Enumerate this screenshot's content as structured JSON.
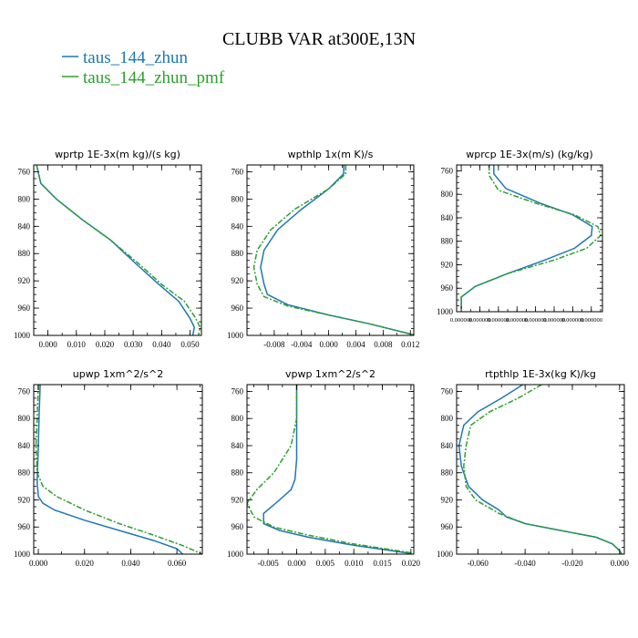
{
  "figure": {
    "title": "CLUBB VAR at300E,13N",
    "legend": [
      {
        "label": "taus_144_zhun",
        "color": "#1f77b4"
      },
      {
        "label": "taus_144_zhun_pmf",
        "color": "#2ca02c"
      }
    ]
  },
  "chart_data": [
    {
      "type": "line",
      "title": "wprtp  1E-3x(m kg)/(s kg)",
      "xlim": [
        -0.005,
        0.054
      ],
      "ylim": [
        1000,
        750
      ],
      "xticks": [
        0.0,
        0.01,
        0.02,
        0.03,
        0.04,
        0.05
      ],
      "xtick_labels": [
        "0.000",
        "0.010",
        "0.020",
        "0.030",
        "0.040",
        "0.050"
      ],
      "yticks": [
        760,
        800,
        840,
        880,
        920,
        960,
        1000
      ],
      "ytick_labels": [
        "760",
        "800",
        "840",
        "880",
        "920",
        "960",
        "1000"
      ],
      "series": [
        {
          "name": "taus_144_zhun",
          "color": "#1f77b4",
          "x": [
            -0.004,
            -0.0025,
            0.003,
            0.012,
            0.022,
            0.031,
            0.039,
            0.046,
            0.05,
            0.0515,
            0.051
          ],
          "y": [
            750,
            777,
            800,
            830,
            860,
            895,
            925,
            950,
            975,
            988,
            1000
          ]
        },
        {
          "name": "taus_144_zhun_pmf",
          "color": "#2ca02c",
          "x": [
            -0.004,
            -0.0025,
            0.003,
            0.012,
            0.022,
            0.032,
            0.04,
            0.048,
            0.052,
            0.0535,
            0.053
          ],
          "y": [
            750,
            777,
            800,
            830,
            860,
            895,
            925,
            950,
            975,
            988,
            1000
          ]
        }
      ]
    },
    {
      "type": "line",
      "title": "wpthlp  1x(m K)/s",
      "xlim": [
        -0.012,
        0.0125
      ],
      "ylim": [
        1000,
        750
      ],
      "xticks": [
        -0.008,
        -0.004,
        0.0,
        0.004,
        0.008,
        0.012
      ],
      "xtick_labels": [
        "-0.008",
        "-0.004",
        "0.000",
        "0.004",
        "0.008",
        "0.012"
      ],
      "yticks": [
        760,
        800,
        840,
        880,
        920,
        960,
        1000
      ],
      "ytick_labels": [
        "760",
        "800",
        "840",
        "880",
        "920",
        "960",
        "1000"
      ],
      "series": [
        {
          "name": "taus_144_zhun",
          "color": "#1f77b4",
          "x": [
            0.0022,
            0.0022,
            0.0,
            -0.004,
            -0.0075,
            -0.0095,
            -0.01,
            -0.0095,
            -0.009,
            -0.006,
            0.0,
            0.006,
            0.012
          ],
          "y": [
            750,
            763,
            785,
            815,
            845,
            875,
            900,
            925,
            940,
            955,
            970,
            983,
            998
          ]
        },
        {
          "name": "taus_144_zhun_pmf",
          "color": "#2ca02c",
          "x": [
            0.0025,
            0.0025,
            0.0,
            -0.005,
            -0.0085,
            -0.0105,
            -0.011,
            -0.0105,
            -0.0095,
            -0.006,
            0.0,
            0.006,
            0.0125
          ],
          "y": [
            750,
            763,
            785,
            815,
            845,
            875,
            900,
            925,
            943,
            957,
            970,
            983,
            999
          ]
        }
      ]
    },
    {
      "type": "line",
      "title": "wprcp  1E-3x(m/s) (kg/kg)",
      "xlim": [
        -0.0005,
        0.0152
      ],
      "ylim": [
        1000,
        750
      ],
      "xticks": [
        0.0,
        0.002,
        0.004,
        0.006,
        0.008,
        0.01,
        0.012,
        0.014
      ],
      "xtick_labels": [
        "0.000000",
        "0.000000",
        "0.000000",
        "0.000000",
        "0.000000",
        "0.000000",
        "0.000000",
        "0.000000"
      ],
      "yticks": [
        760,
        800,
        840,
        880,
        920,
        960
      ],
      "ytick_labels": [
        "760",
        "800",
        "840",
        "880",
        "920",
        "960"
      ],
      "bottom_label": "1000",
      "series": [
        {
          "name": "taus_144_zhun",
          "color": "#1f77b4",
          "x": [
            0.0035,
            0.0035,
            0.0048,
            0.0085,
            0.012,
            0.0141,
            0.014,
            0.0122,
            0.009,
            0.005,
            0.0015,
            0.0,
            0.0
          ],
          "y": [
            750,
            765,
            790,
            815,
            835,
            855,
            870,
            892,
            912,
            935,
            957,
            975,
            995
          ]
        },
        {
          "name": "taus_144_zhun_pmf",
          "color": "#2ca02c",
          "x": [
            0.003,
            0.003,
            0.004,
            0.008,
            0.0122,
            0.0147,
            0.015,
            0.0135,
            0.01,
            0.005,
            0.0015,
            0.0,
            0.0
          ],
          "y": [
            750,
            768,
            793,
            815,
            835,
            855,
            870,
            892,
            912,
            935,
            957,
            975,
            995
          ]
        }
      ]
    },
    {
      "type": "line",
      "title": "upwp  1xm^2/s^2",
      "xlim": [
        -0.002,
        0.071
      ],
      "ylim": [
        1000,
        750
      ],
      "xticks": [
        0.0,
        0.02,
        0.04,
        0.06
      ],
      "xtick_labels": [
        "0.000",
        "0.020",
        "0.040",
        "0.060"
      ],
      "yticks": [
        760,
        800,
        840,
        880,
        920,
        960,
        1000
      ],
      "ytick_labels": [
        "760",
        "800",
        "840",
        "880",
        "920",
        "960",
        "1000"
      ],
      "series": [
        {
          "name": "taus_144_zhun",
          "color": "#1f77b4",
          "x": [
            0.0008,
            0.0003,
            0.0,
            -0.0003,
            -0.0005,
            0.0,
            0.002,
            0.007,
            0.02,
            0.035,
            0.05,
            0.06,
            0.0625
          ],
          "y": [
            750,
            800,
            840,
            870,
            895,
            915,
            925,
            935,
            950,
            965,
            980,
            992,
            1000
          ]
        },
        {
          "name": "taus_144_zhun_pmf",
          "color": "#2ca02c",
          "x": [
            0.0,
            -0.0005,
            -0.001,
            -0.0005,
            0.002,
            0.008,
            0.02,
            0.035,
            0.05,
            0.063,
            0.071
          ],
          "y": [
            750,
            800,
            840,
            880,
            900,
            915,
            935,
            955,
            972,
            988,
            1000
          ]
        }
      ]
    },
    {
      "type": "line",
      "title": "vpwp  1xm^2/s^2",
      "xlim": [
        -0.0087,
        0.0205
      ],
      "ylim": [
        1000,
        750
      ],
      "xticks": [
        -0.005,
        0.0,
        0.005,
        0.01,
        0.015,
        0.02
      ],
      "xtick_labels": [
        "-0.005",
        "0.000",
        "0.005",
        "0.010",
        "0.015",
        "0.020"
      ],
      "yticks": [
        760,
        800,
        840,
        880,
        920,
        960,
        1000
      ],
      "ytick_labels": [
        "760",
        "800",
        "840",
        "880",
        "920",
        "960",
        "1000"
      ],
      "series": [
        {
          "name": "taus_144_zhun",
          "color": "#1f77b4",
          "x": [
            0.0,
            0.0,
            0.0,
            -0.0003,
            -0.001,
            -0.003,
            -0.0058,
            -0.0058,
            -0.003,
            0.002,
            0.01,
            0.02
          ],
          "y": [
            750,
            800,
            860,
            890,
            905,
            920,
            940,
            955,
            965,
            975,
            987,
            999
          ]
        },
        {
          "name": "taus_144_zhun_pmf",
          "color": "#2ca02c",
          "x": [
            0.0,
            0.0,
            -0.001,
            -0.004,
            -0.007,
            -0.0087,
            -0.0075,
            -0.004,
            0.002,
            0.01,
            0.02
          ],
          "y": [
            750,
            800,
            840,
            880,
            905,
            925,
            945,
            960,
            972,
            985,
            998
          ]
        }
      ]
    },
    {
      "type": "line",
      "title": "rtpthlp  1E-3x(kg K)/kg",
      "xlim": [
        -0.069,
        0.002
      ],
      "ylim": [
        1000,
        750
      ],
      "xticks": [
        -0.06,
        -0.04,
        -0.02,
        0.0
      ],
      "xtick_labels": [
        "-0.060",
        "-0.040",
        "-0.020",
        "0.000"
      ],
      "yticks": [
        760,
        800,
        840,
        880,
        920,
        960,
        1000
      ],
      "ytick_labels": [
        "760",
        "800",
        "840",
        "880",
        "920",
        "960",
        "1000"
      ],
      "series": [
        {
          "name": "taus_144_zhun",
          "color": "#1f77b4",
          "x": [
            -0.041,
            -0.05,
            -0.06,
            -0.066,
            -0.068,
            -0.067,
            -0.064,
            -0.058,
            -0.051,
            -0.048,
            -0.04,
            -0.025,
            -0.01,
            -0.003,
            0.0,
            0.001
          ],
          "y": [
            750,
            770,
            790,
            810,
            840,
            870,
            900,
            920,
            935,
            945,
            955,
            965,
            975,
            985,
            995,
            1000
          ]
        },
        {
          "name": "taus_144_zhun_pmf",
          "color": "#2ca02c",
          "x": [
            -0.033,
            -0.043,
            -0.055,
            -0.063,
            -0.065,
            -0.066,
            -0.065,
            -0.061,
            -0.051,
            -0.04,
            -0.025,
            -0.01,
            -0.003,
            0.0,
            0.001
          ],
          "y": [
            750,
            770,
            790,
            810,
            840,
            870,
            900,
            920,
            940,
            955,
            965,
            975,
            985,
            995,
            1000
          ]
        }
      ]
    }
  ]
}
